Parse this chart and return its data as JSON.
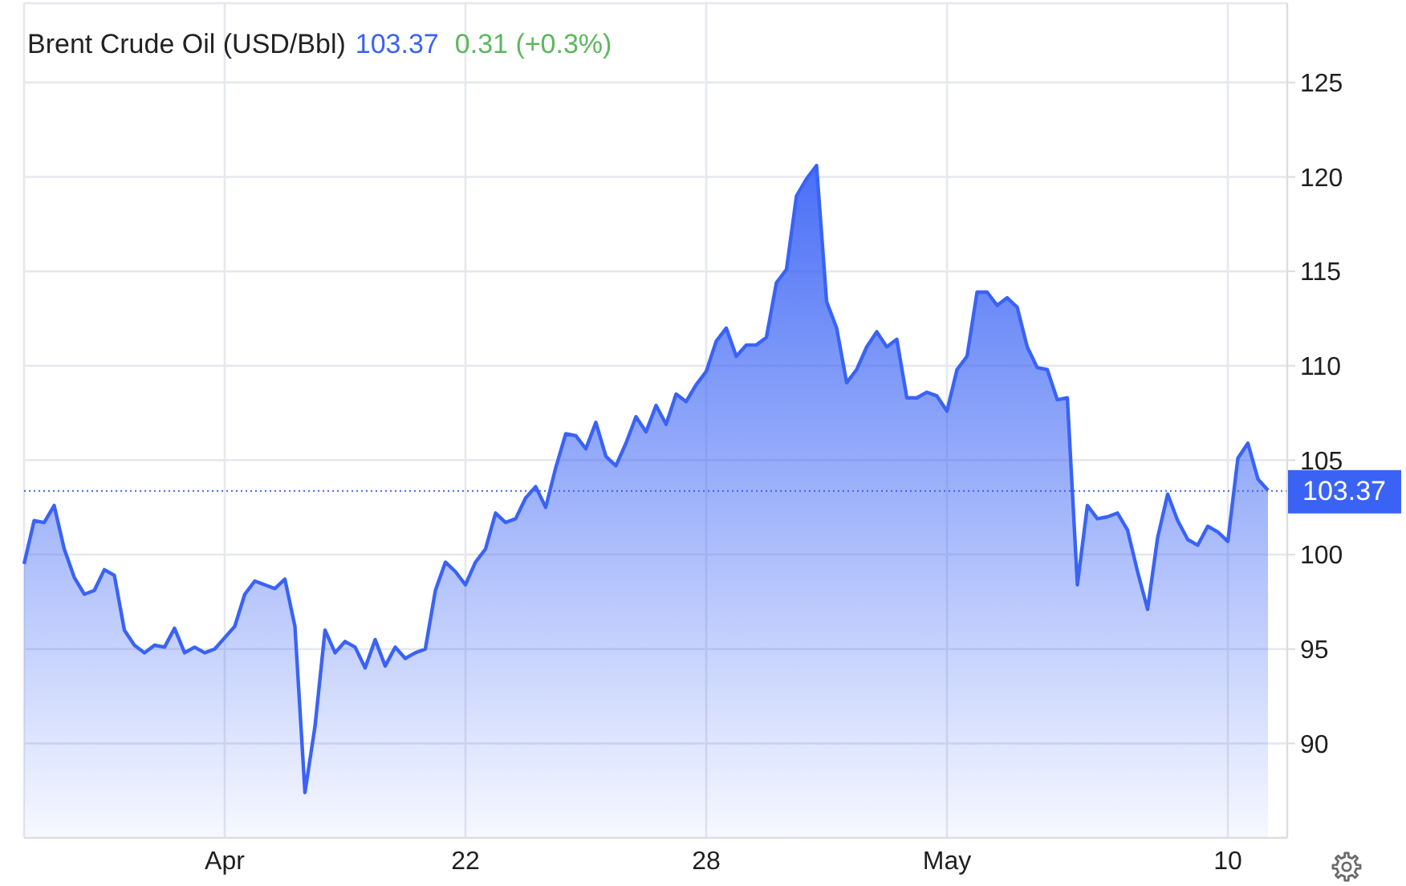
{
  "chart_data": {
    "type": "area",
    "title": "Brent Crude Oil (USD/Bbl)",
    "annotations": [
      "103.37",
      "0.31 (+0.3%)"
    ],
    "categories": [
      null,
      null,
      null,
      null,
      null,
      null,
      null,
      null,
      null,
      null,
      null,
      null,
      null,
      null,
      null,
      null,
      null,
      null,
      null,
      null,
      "Apr",
      null,
      null,
      null,
      null,
      null,
      null,
      null,
      null,
      null,
      null,
      null,
      null,
      null,
      null,
      null,
      null,
      null,
      null,
      null,
      null,
      null,
      null,
      null,
      "22",
      null,
      null,
      null,
      null,
      null,
      null,
      null,
      null,
      null,
      null,
      null,
      null,
      null,
      null,
      null,
      null,
      null,
      null,
      null,
      null,
      null,
      null,
      null,
      "28",
      null,
      null,
      null,
      null,
      null,
      null,
      null,
      null,
      null,
      null,
      null,
      null,
      null,
      null,
      null,
      null,
      null,
      null,
      null,
      null,
      null,
      null,
      null,
      "May",
      null,
      null,
      null,
      null,
      null,
      null,
      null,
      null,
      null,
      null,
      null,
      null,
      null,
      null,
      null,
      null,
      null,
      null,
      null,
      null,
      null,
      null,
      null,
      null,
      null,
      null,
      null,
      "10",
      null,
      null,
      null,
      null
    ],
    "values": [
      99.5,
      101.8,
      101.7,
      102.6,
      100.3,
      98.8,
      97.9,
      98.1,
      99.2,
      98.9,
      96.0,
      95.2,
      94.8,
      95.2,
      95.1,
      96.1,
      94.8,
      95.1,
      94.8,
      95.0,
      95.6,
      96.2,
      97.9,
      98.6,
      98.4,
      98.2,
      98.7,
      96.2,
      87.4,
      90.9,
      96.0,
      94.8,
      95.4,
      95.1,
      94.0,
      95.5,
      94.1,
      95.1,
      94.5,
      94.8,
      95.0,
      98.1,
      99.6,
      99.1,
      98.4,
      99.6,
      100.3,
      102.2,
      101.7,
      101.9,
      103.0,
      103.6,
      102.5,
      104.6,
      106.4,
      106.3,
      105.6,
      107.0,
      105.2,
      104.7,
      105.9,
      107.3,
      106.5,
      107.9,
      106.9,
      108.5,
      108.1,
      109.0,
      109.7,
      111.3,
      112.0,
      110.5,
      111.1,
      111.1,
      111.5,
      114.4,
      115.1,
      119.0,
      119.9,
      120.6,
      113.4,
      112.0,
      109.1,
      109.8,
      111.0,
      111.8,
      111.0,
      111.4,
      108.3,
      108.3,
      108.6,
      108.4,
      107.6,
      109.8,
      110.5,
      113.9,
      113.9,
      113.2,
      113.6,
      113.1,
      111.0,
      109.9,
      109.8,
      108.2,
      108.3,
      98.4,
      102.6,
      101.9,
      102.0,
      102.2,
      101.3,
      99.1,
      97.1,
      100.9,
      103.2,
      101.8,
      100.8,
      100.5,
      101.5,
      101.2,
      100.7,
      105.1,
      105.9,
      104.0,
      103.4
    ],
    "color": "#3a63f5",
    "ylim": [
      85,
      129.2
    ],
    "yticks": [
      90,
      95,
      100,
      105,
      110,
      115,
      120,
      125
    ],
    "grid": true,
    "ref_lines": [
      {
        "axis": "y",
        "value": 103.37,
        "label": "103.37",
        "color": "#3a63f5",
        "line_style": "dotted"
      }
    ]
  }
}
